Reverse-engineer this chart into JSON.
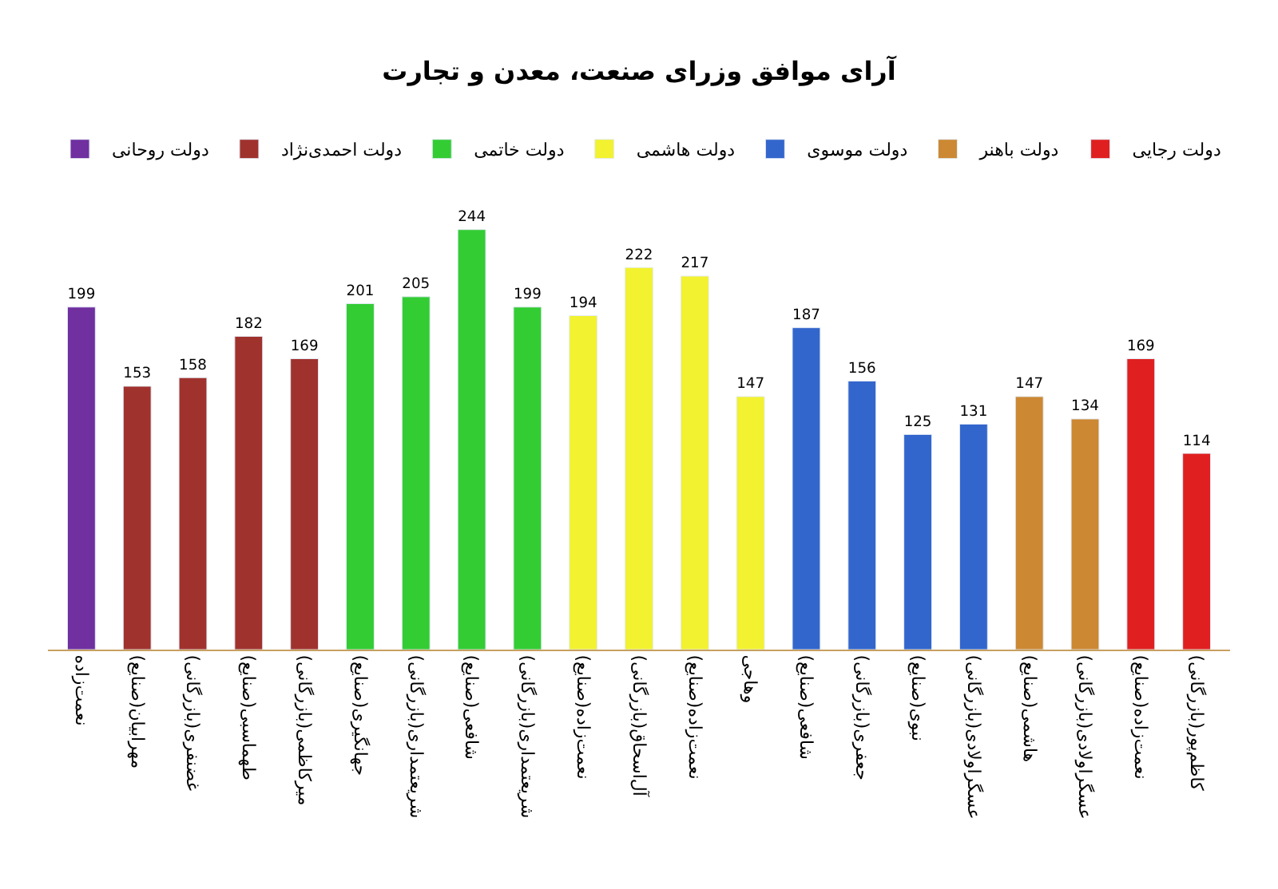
{
  "chart_data": {
    "type": "bar",
    "title": "آرای موافق وزرای صنعت، معدن و تجارت",
    "categories": [
      "نعمت‌زاده",
      "مهرابیان(صنایع)",
      "غضنفری(بازرگانی)",
      "طهماسبی(صنایع)",
      "میرکاظمی(بازرگانی)",
      "جهانگیری(صنایع)",
      "شریعتمداری(بازرگانی)",
      "شافعی(صنایع)",
      "شریعتمداری(بازرگانی)",
      "نعمت‌زاده(صنایع)",
      "آل‌اسحاق(بازرگانی)",
      "نعمت‌زاده(صنایع)",
      "وهاجی",
      "شافعی(صنایع)",
      "جعفری(بازرگانی)",
      "نبوی(صنایع)",
      "عسگراولادی(بازرگانی)",
      "هاشمی(صنایع)",
      "عسگراولادی(بازرگانی)",
      "نعمت‌زاده(صنایع)",
      "کاظم‌پور(بازرگانی)"
    ],
    "series": [
      {
        "name": "دولت روحانی",
        "color": "#7030a0",
        "values": [
          199,
          null,
          null,
          null,
          null,
          null,
          null,
          null,
          null,
          null,
          null,
          null,
          null,
          null,
          null,
          null,
          null,
          null,
          null,
          null,
          null
        ]
      },
      {
        "name": "دولت احمدی‌نژاد",
        "color": "#a0322d",
        "values": [
          null,
          153,
          158,
          182,
          169,
          null,
          null,
          null,
          null,
          null,
          null,
          null,
          null,
          null,
          null,
          null,
          null,
          null,
          null,
          null,
          null
        ]
      },
      {
        "name": "دولت خاتمی",
        "color": "#33cc33",
        "values": [
          null,
          null,
          null,
          null,
          null,
          201,
          205,
          244,
          199,
          null,
          null,
          null,
          null,
          null,
          null,
          null,
          null,
          null,
          null,
          null,
          null
        ]
      },
      {
        "name": "دولت هاشمی",
        "color": "#f2f230",
        "values": [
          null,
          null,
          null,
          null,
          null,
          null,
          null,
          null,
          null,
          194,
          222,
          217,
          147,
          null,
          null,
          null,
          null,
          null,
          null,
          null,
          null
        ]
      },
      {
        "name": "دولت موسوی",
        "color": "#3366cc",
        "values": [
          null,
          null,
          null,
          null,
          null,
          null,
          null,
          null,
          null,
          null,
          null,
          null,
          null,
          187,
          156,
          125,
          131,
          null,
          null,
          null,
          null
        ]
      },
      {
        "name": "دولت باهنر",
        "color": "#cc8833",
        "values": [
          null,
          null,
          null,
          null,
          null,
          null,
          null,
          null,
          null,
          null,
          null,
          null,
          null,
          null,
          null,
          null,
          null,
          147,
          134,
          null,
          null
        ]
      },
      {
        "name": "دولت رجایی",
        "color": "#e02020",
        "values": [
          null,
          null,
          null,
          null,
          null,
          null,
          null,
          null,
          null,
          null,
          null,
          null,
          null,
          null,
          null,
          null,
          null,
          null,
          null,
          169,
          114
        ]
      }
    ],
    "data_labels": true,
    "legend": "top"
  }
}
